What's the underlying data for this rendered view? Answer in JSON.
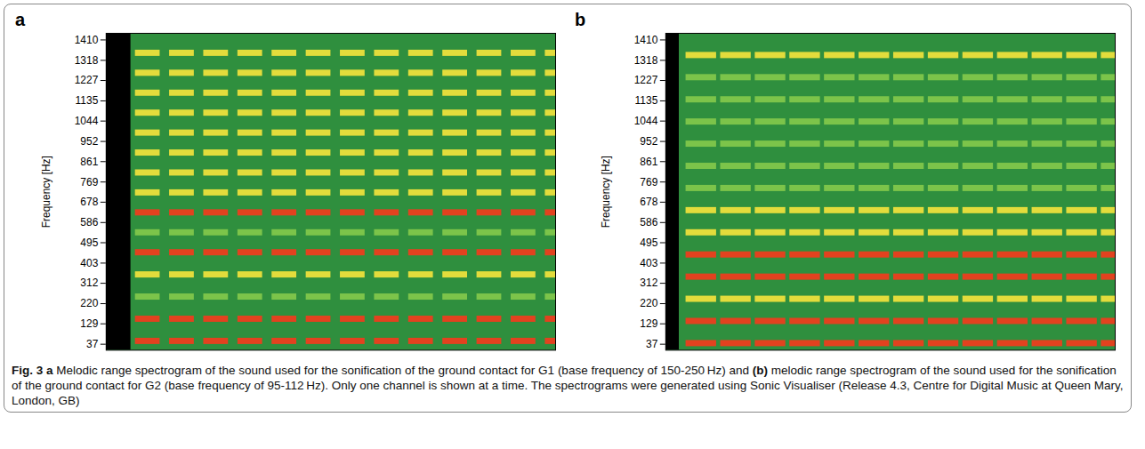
{
  "chart_data": [
    {
      "type": "heatmap",
      "panel_label": "a",
      "ylabel": "Frequency [Hz]",
      "tick_labels": "y",
      "xlim": [
        0,
        100
      ],
      "ylim": [
        10,
        1440
      ],
      "yticks": [
        37,
        129,
        220,
        312,
        403,
        495,
        586,
        678,
        769,
        861,
        952,
        1044,
        1135,
        1227,
        1318,
        1410
      ],
      "colors": [
        "#2f8f3e",
        "#7cc44a",
        "#e3dc3c",
        "#e2421f"
      ],
      "silence": {
        "start": 0,
        "end": 5.5,
        "color": "#000000"
      },
      "pulses": [
        {
          "start": 6.5,
          "end": 12.0
        },
        {
          "start": 14.1,
          "end": 19.6
        },
        {
          "start": 21.7,
          "end": 27.2
        },
        {
          "start": 29.3,
          "end": 34.8
        },
        {
          "start": 36.9,
          "end": 42.4
        },
        {
          "start": 44.5,
          "end": 50.0
        },
        {
          "start": 52.1,
          "end": 57.6
        },
        {
          "start": 59.7,
          "end": 65.2
        },
        {
          "start": 67.3,
          "end": 72.8
        },
        {
          "start": 74.9,
          "end": 80.4
        },
        {
          "start": 82.5,
          "end": 88.0
        },
        {
          "start": 90.1,
          "end": 95.6
        },
        {
          "start": 97.7,
          "end": 100
        }
      ],
      "bands": [
        {
          "frequency": 50,
          "intensity": 3
        },
        {
          "frequency": 150,
          "intensity": 3
        },
        {
          "frequency": 250,
          "intensity": 1
        },
        {
          "frequency": 350,
          "intensity": 2
        },
        {
          "frequency": 450,
          "intensity": 3
        },
        {
          "frequency": 540,
          "intensity": 1
        },
        {
          "frequency": 630,
          "intensity": 3
        },
        {
          "frequency": 720,
          "intensity": 2
        },
        {
          "frequency": 810,
          "intensity": 2
        },
        {
          "frequency": 900,
          "intensity": 2
        },
        {
          "frequency": 990,
          "intensity": 2
        },
        {
          "frequency": 1080,
          "intensity": 2
        },
        {
          "frequency": 1170,
          "intensity": 2
        },
        {
          "frequency": 1260,
          "intensity": 2
        },
        {
          "frequency": 1350,
          "intensity": 2
        }
      ]
    },
    {
      "type": "heatmap",
      "panel_label": "b",
      "ylabel": "Frequency [Hz]",
      "tick_labels": "y",
      "xlim": [
        0,
        100
      ],
      "ylim": [
        10,
        1440
      ],
      "yticks": [
        37,
        129,
        220,
        312,
        403,
        495,
        586,
        678,
        769,
        861,
        952,
        1044,
        1135,
        1227,
        1318,
        1410
      ],
      "colors": [
        "#2f8f3e",
        "#7cc44a",
        "#e3dc3c",
        "#e2421f"
      ],
      "silence": {
        "start": 0,
        "end": 3,
        "color": "#000000"
      },
      "pulses": [
        {
          "start": 4.5,
          "end": 11.3
        },
        {
          "start": 12.2,
          "end": 19.0
        },
        {
          "start": 19.9,
          "end": 26.7
        },
        {
          "start": 27.6,
          "end": 34.4
        },
        {
          "start": 35.3,
          "end": 42.1
        },
        {
          "start": 43.0,
          "end": 49.8
        },
        {
          "start": 50.7,
          "end": 57.5
        },
        {
          "start": 58.4,
          "end": 65.2
        },
        {
          "start": 66.1,
          "end": 72.9
        },
        {
          "start": 73.8,
          "end": 80.6
        },
        {
          "start": 81.5,
          "end": 88.3
        },
        {
          "start": 89.2,
          "end": 96.0
        },
        {
          "start": 96.9,
          "end": 100
        }
      ],
      "bands": [
        {
          "frequency": 40,
          "intensity": 3
        },
        {
          "frequency": 140,
          "intensity": 3
        },
        {
          "frequency": 240,
          "intensity": 2
        },
        {
          "frequency": 340,
          "intensity": 3
        },
        {
          "frequency": 440,
          "intensity": 3
        },
        {
          "frequency": 540,
          "intensity": 2
        },
        {
          "frequency": 640,
          "intensity": 2
        },
        {
          "frequency": 740,
          "intensity": 1
        },
        {
          "frequency": 840,
          "intensity": 1
        },
        {
          "frequency": 940,
          "intensity": 1
        },
        {
          "frequency": 1040,
          "intensity": 1
        },
        {
          "frequency": 1140,
          "intensity": 1
        },
        {
          "frequency": 1240,
          "intensity": 1
        },
        {
          "frequency": 1340,
          "intensity": 2
        }
      ]
    }
  ],
  "caption": [
    {
      "text": "Fig. 3",
      "bold": true
    },
    {
      "text": " ",
      "bold": false
    },
    {
      "text": "a",
      "bold": true
    },
    {
      "text": " Melodic range spectrogram of the sound used for the sonification of the ground contact for G1 (base frequency of 150-250 Hz) and ",
      "bold": false
    },
    {
      "text": "(b)",
      "bold": true
    },
    {
      "text": " melodic range spectrogram of the sound used for the sonification of the ground contact for G2 (base frequency of 95-112 Hz). Only one channel is shown at a time. The spectrograms were generated using Sonic Visualiser (Release 4.3, Centre for Digital Music at Queen Mary, London, GB)",
      "bold": false
    }
  ]
}
